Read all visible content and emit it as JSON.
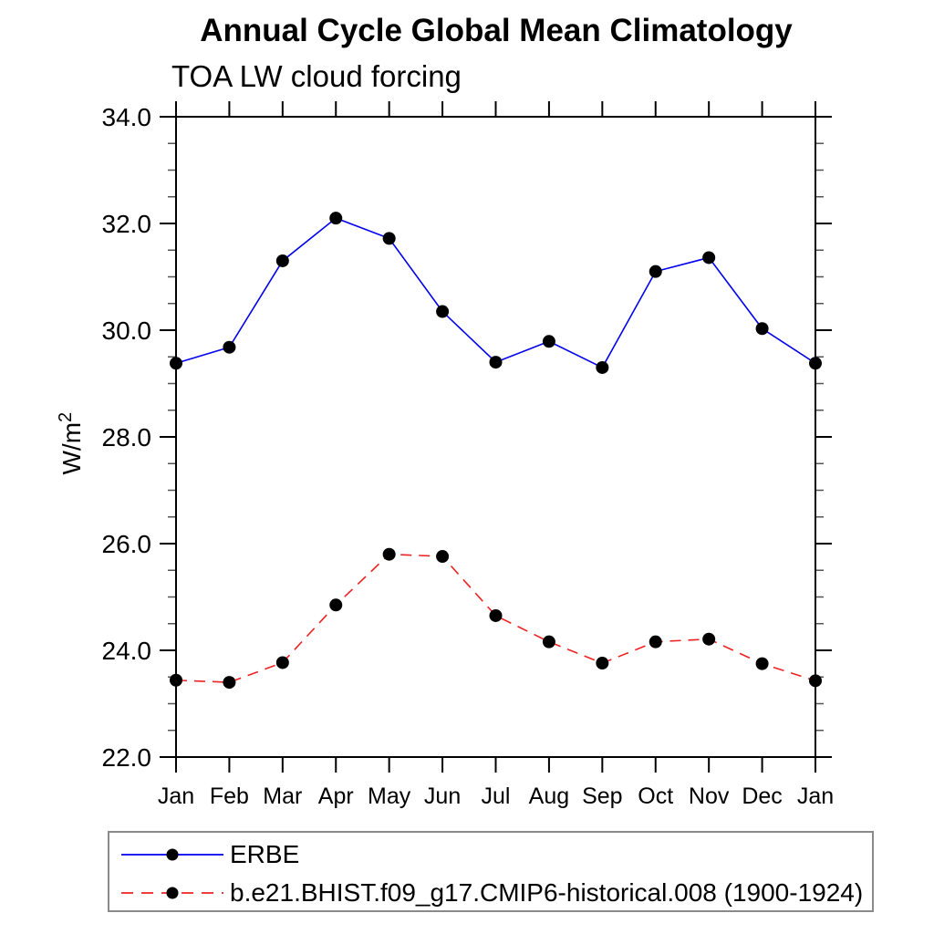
{
  "chart_data": {
    "type": "line",
    "title": "Annual Cycle Global Mean Climatology",
    "subtitle": "TOA LW cloud forcing",
    "ylabel_base": "W/m",
    "ylabel_exp": "2",
    "categories": [
      "Jan",
      "Feb",
      "Mar",
      "Apr",
      "May",
      "Jun",
      "Jul",
      "Aug",
      "Sep",
      "Oct",
      "Nov",
      "Dec",
      "Jan"
    ],
    "ylim": [
      22.0,
      34.0
    ],
    "y_major_ticks": [
      22.0,
      24.0,
      26.0,
      28.0,
      30.0,
      32.0,
      34.0
    ],
    "y_major_tick_labels": [
      "22.0",
      "24.0",
      "26.0",
      "28.0",
      "30.0",
      "32.0",
      "34.0"
    ],
    "y_minor_step": 0.5,
    "grid": false,
    "legend_position": "bottom-left-box",
    "axis_color": "#000000",
    "minor_tick_color": "#555555",
    "series": [
      {
        "name": "ERBE",
        "color": "#0000ee",
        "line_style": "solid",
        "marker": "filled-circle",
        "marker_color": "#000000",
        "values": [
          29.38,
          29.68,
          31.3,
          32.1,
          31.72,
          30.35,
          29.4,
          29.79,
          29.3,
          31.1,
          31.36,
          30.03,
          29.38
        ]
      },
      {
        "name": "b.e21.BHIST.f09_g17.CMIP6-historical.008 (1900-1924)",
        "color": "#ee2222",
        "line_style": "dashed",
        "marker": "filled-circle",
        "marker_color": "#000000",
        "values": [
          23.44,
          23.4,
          23.77,
          24.85,
          25.8,
          25.76,
          24.65,
          24.16,
          23.76,
          24.16,
          24.21,
          23.75,
          23.43
        ]
      }
    ]
  }
}
